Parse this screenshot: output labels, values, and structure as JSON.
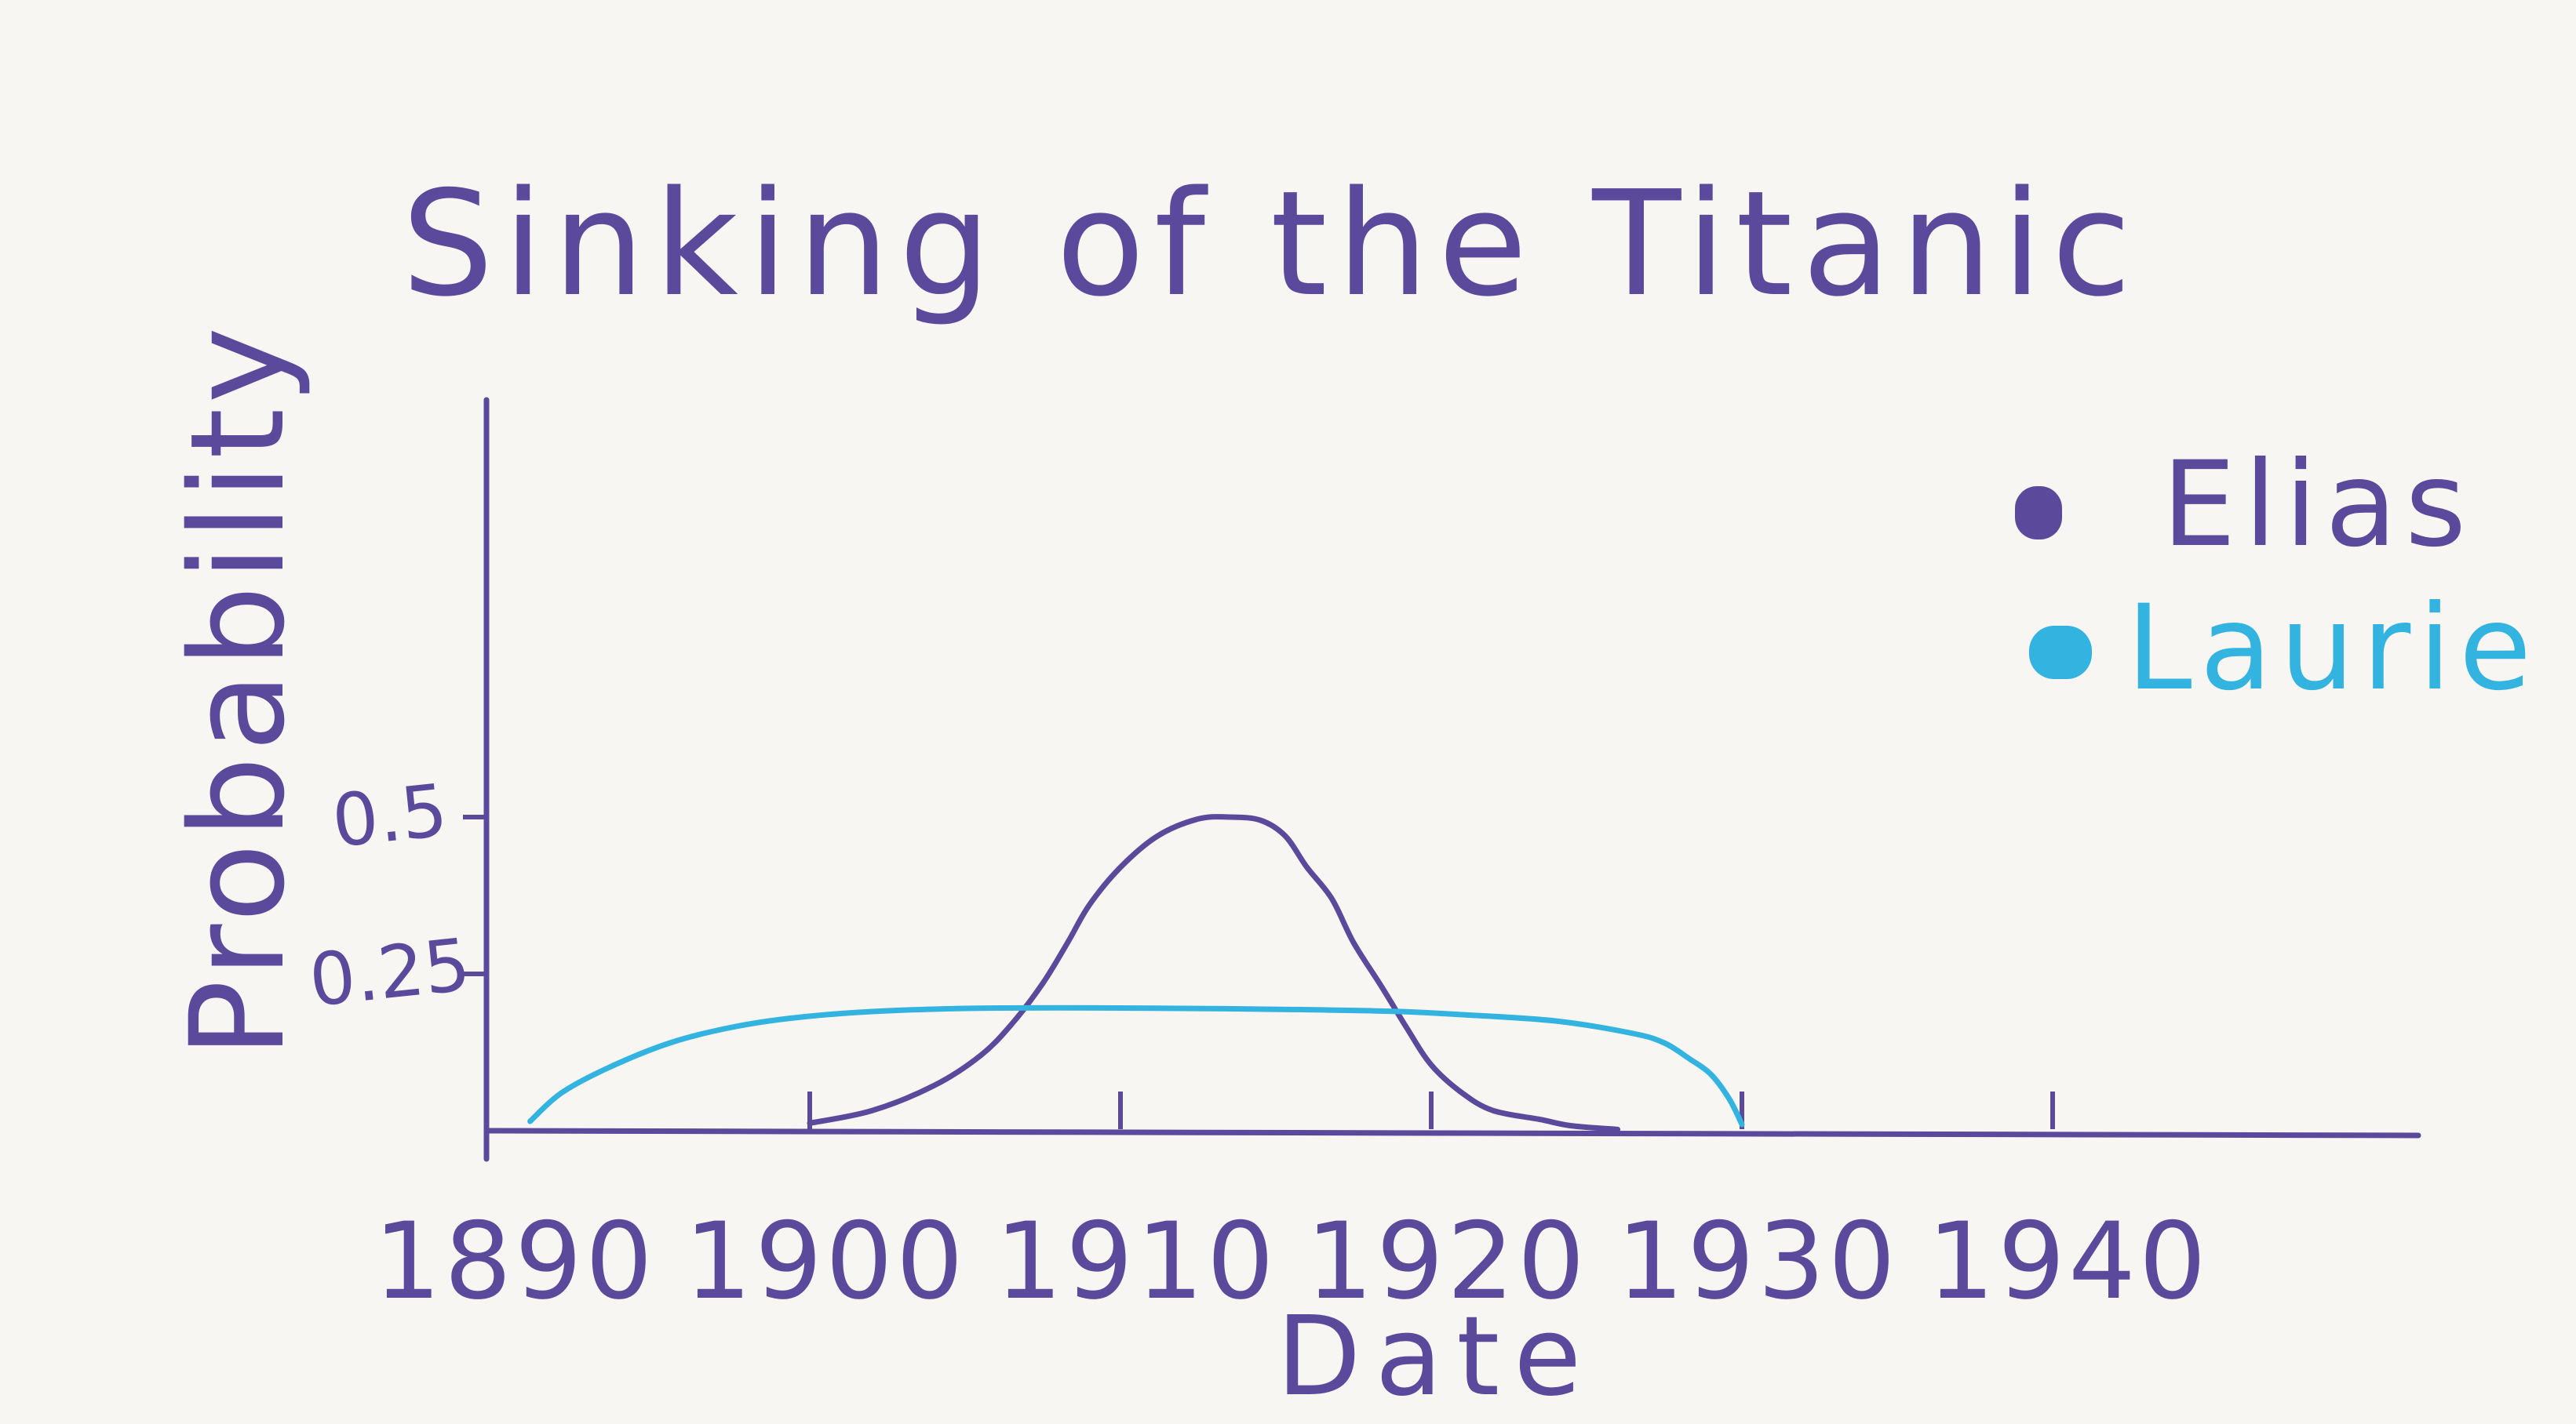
{
  "chart_data": {
    "type": "line",
    "title": "Sinking of the Titanic",
    "xlabel": "Date",
    "ylabel": "Probability",
    "xlim": [
      1890,
      1946
    ],
    "ylim": [
      0,
      0.55
    ],
    "x_ticks": [
      "1890",
      "1900",
      "1910",
      "1920",
      "1930",
      "1940"
    ],
    "y_ticks": [
      "0.25",
      "0.5"
    ],
    "grid": false,
    "legend_position": "top-right",
    "series": [
      {
        "name": "Elias",
        "color": "#5b4a9b",
        "points": [
          [
            1900.0,
            0.012
          ],
          [
            1902.0,
            0.032
          ],
          [
            1904.0,
            0.072
          ],
          [
            1905.5,
            0.12
          ],
          [
            1906.5,
            0.17
          ],
          [
            1907.5,
            0.235
          ],
          [
            1908.3,
            0.3
          ],
          [
            1909.0,
            0.36
          ],
          [
            1910.0,
            0.42
          ],
          [
            1911.2,
            0.47
          ],
          [
            1912.5,
            0.497
          ],
          [
            1913.5,
            0.5
          ],
          [
            1914.5,
            0.495
          ],
          [
            1915.3,
            0.47
          ],
          [
            1916.0,
            0.42
          ],
          [
            1916.8,
            0.37
          ],
          [
            1917.5,
            0.3
          ],
          [
            1918.4,
            0.23
          ],
          [
            1919.2,
            0.165
          ],
          [
            1920.0,
            0.105
          ],
          [
            1921.0,
            0.06
          ],
          [
            1922.0,
            0.032
          ],
          [
            1923.5,
            0.018
          ],
          [
            1924.5,
            0.008
          ],
          [
            1926.0,
            0.002
          ]
        ]
      },
      {
        "name": "Laurie",
        "color": "#33b3e0",
        "points": [
          [
            1891.0,
            0.015
          ],
          [
            1892.0,
            0.06
          ],
          [
            1893.5,
            0.1
          ],
          [
            1895.5,
            0.14
          ],
          [
            1897.5,
            0.165
          ],
          [
            1899.5,
            0.18
          ],
          [
            1902.0,
            0.19
          ],
          [
            1905.0,
            0.195
          ],
          [
            1908.0,
            0.196
          ],
          [
            1912.0,
            0.195
          ],
          [
            1916.0,
            0.193
          ],
          [
            1919.0,
            0.19
          ],
          [
            1921.0,
            0.185
          ],
          [
            1924.0,
            0.175
          ],
          [
            1926.5,
            0.155
          ],
          [
            1927.5,
            0.14
          ],
          [
            1928.3,
            0.115
          ],
          [
            1929.0,
            0.09
          ],
          [
            1929.6,
            0.05
          ],
          [
            1930.0,
            0.01
          ]
        ]
      }
    ]
  }
}
